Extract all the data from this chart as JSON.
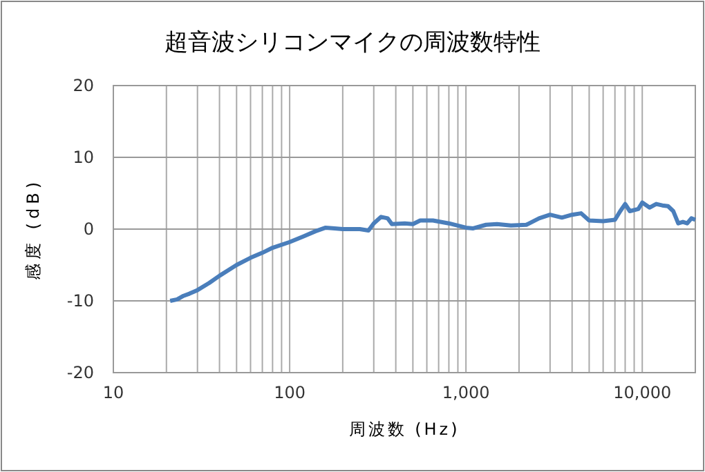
{
  "chart_data": {
    "type": "line",
    "title": "超音波シリコンマイクの周波数特性",
    "xlabel": "周波数 (Hz)",
    "ylabel": "感度 (dB)",
    "log": "x",
    "grid": true,
    "line_style": "solid",
    "xlim": [
      10,
      20000
    ],
    "ylim": [
      -20,
      20
    ],
    "xticks": [
      10,
      {
        "value": 20,
        "label": null
      },
      {
        "value": 30,
        "label": null
      },
      {
        "value": 40,
        "label": null
      },
      {
        "value": 50,
        "label": null
      },
      {
        "value": 60,
        "label": null
      },
      {
        "value": 70,
        "label": null
      },
      {
        "value": 80,
        "label": null
      },
      {
        "value": 90,
        "label": null
      },
      100,
      {
        "value": 200,
        "label": null
      },
      {
        "value": 300,
        "label": null
      },
      {
        "value": 400,
        "label": null
      },
      {
        "value": 500,
        "label": null
      },
      {
        "value": 600,
        "label": null
      },
      {
        "value": 700,
        "label": null
      },
      {
        "value": 800,
        "label": null
      },
      {
        "value": 900,
        "label": null
      },
      {
        "value": 1000,
        "label": "1,000"
      },
      {
        "value": 2000,
        "label": null
      },
      {
        "value": 3000,
        "label": null
      },
      {
        "value": 4000,
        "label": null
      },
      {
        "value": 5000,
        "label": null
      },
      {
        "value": 6000,
        "label": null
      },
      {
        "value": 7000,
        "label": null
      },
      {
        "value": 8000,
        "label": null
      },
      {
        "value": 9000,
        "label": null
      },
      {
        "value": 10000,
        "label": "10,000"
      }
    ],
    "yticks": [
      -20,
      -10,
      0,
      10,
      20
    ],
    "x": [
      21,
      23,
      25,
      27,
      30,
      35,
      40,
      50,
      60,
      70,
      80,
      100,
      120,
      140,
      160,
      180,
      200,
      250,
      280,
      300,
      330,
      360,
      380,
      450,
      500,
      550,
      650,
      800,
      1000,
      1100,
      1300,
      1500,
      1800,
      2200,
      2600,
      3000,
      3500,
      4000,
      4500,
      5000,
      6000,
      7000,
      7500,
      8000,
      8500,
      9500,
      10000,
      11000,
      12000,
      13000,
      14000,
      15000,
      16000,
      17000,
      18000,
      19000,
      20000
    ],
    "series": [
      {
        "color": "#4a7ebb",
        "values": [
          -10,
          -9.8,
          -9.3,
          -9,
          -8.5,
          -7.5,
          -6.5,
          -5,
          -4,
          -3.3,
          -2.6,
          -1.8,
          -1,
          -0.3,
          0.2,
          0.1,
          0,
          0,
          -0.2,
          0.8,
          1.7,
          1.5,
          0.7,
          0.8,
          0.7,
          1.2,
          1.2,
          0.8,
          0.2,
          0.1,
          0.6,
          0.7,
          0.5,
          0.6,
          1.5,
          2,
          1.6,
          2,
          2.2,
          1.2,
          1.1,
          1.3,
          2.5,
          3.5,
          2.5,
          2.8,
          3.7,
          3,
          3.5,
          3.3,
          3.2,
          2.5,
          0.8,
          1,
          0.8,
          1.5,
          1.3
        ]
      }
    ]
  }
}
